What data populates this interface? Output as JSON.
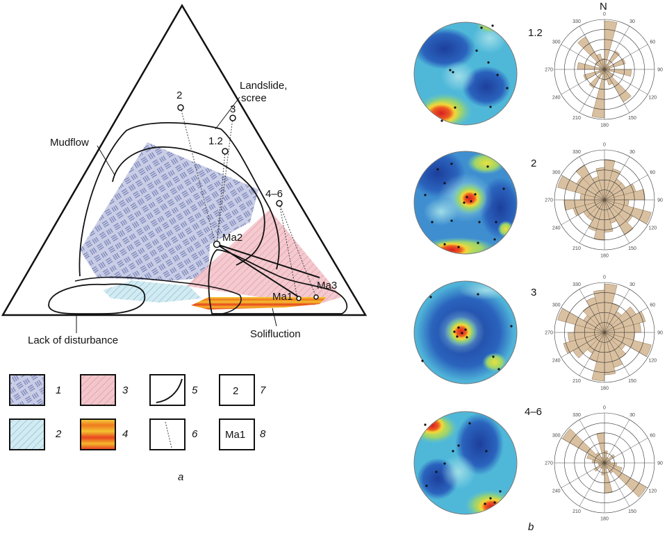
{
  "figure": {
    "panel_a_label": "a",
    "panel_b_label": "b",
    "zones": {
      "landslide_line1": "Landslide,",
      "landslide_line2": "scree",
      "mudflow": "Mudflow",
      "lack": "Lack of disturbance",
      "solifluction": "Solifluction"
    },
    "points": {
      "p2": "2",
      "p3": "3",
      "p12": "1.2",
      "p46": "4–6",
      "ma1": "Ma1",
      "ma2": "Ma2",
      "ma3": "Ma3"
    },
    "legend": {
      "n1": "1",
      "n2": "2",
      "n3": "3",
      "n4": "4",
      "n5": "5",
      "n6": "6",
      "n7": "7",
      "n8": "8",
      "box7_text": "2",
      "box8_text": "Ma1"
    },
    "rose_north": "N",
    "rose_ticks": {
      "t0": "0",
      "t30": "30",
      "t60": "60",
      "t90": "90",
      "t120": "120",
      "t150": "150",
      "t180": "180",
      "t210": "210",
      "t240": "240",
      "t270": "270",
      "t300": "300",
      "t330": "330"
    },
    "rows": [
      {
        "label": "1.2",
        "petals": [
          9,
          1,
          4,
          1,
          4,
          1,
          5,
          1,
          2,
          7,
          3,
          2,
          9,
          1,
          4,
          1,
          4,
          1,
          5,
          1,
          2,
          7,
          3,
          2
        ]
      },
      {
        "label": "2",
        "petals": [
          5,
          4,
          3,
          3,
          4,
          5,
          3,
          6,
          4,
          5,
          3,
          4,
          5,
          4,
          3,
          3,
          4,
          5,
          3,
          6,
          4,
          5,
          3,
          4
        ]
      },
      {
        "label": "3",
        "petals": [
          8,
          5,
          4,
          6,
          7,
          6,
          5,
          8,
          4,
          5,
          6,
          7,
          8,
          5,
          4,
          6,
          7,
          6,
          5,
          8,
          4,
          5,
          6,
          7
        ]
      },
      {
        "label": "4–6",
        "petals": [
          2,
          1,
          1,
          2,
          1,
          1,
          2,
          3,
          8,
          2,
          1,
          5,
          2,
          1,
          1,
          2,
          1,
          1,
          2,
          3,
          8,
          2,
          1,
          5
        ]
      }
    ],
    "colors": {
      "stereo_deep": "#1f4fa8",
      "stereo_mid": "#3bb1e0",
      "stereo_light": "#8fd3e8",
      "stereo_yellow": "#e8e03a",
      "stereo_red": "#e0262a",
      "rose_fill": "#d9c0a0",
      "hatch_blue": "#7b86b8",
      "fill_blue": "#c9cde6",
      "fill_pink": "#f2c2c8",
      "fill_cyan": "#cfeaf0"
    }
  }
}
